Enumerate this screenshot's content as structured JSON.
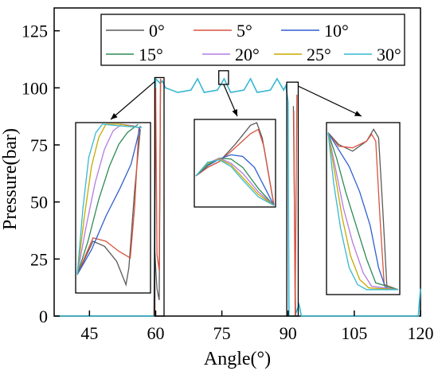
{
  "chart_data": {
    "type": "line",
    "title": "",
    "xlabel": "Angle(°)",
    "ylabel": "Pressure(bar)",
    "xlim": [
      37,
      120
    ],
    "ylim": [
      0,
      135
    ],
    "xticks": [
      45,
      60,
      75,
      90,
      105,
      120
    ],
    "yticks": [
      0,
      25,
      50,
      75,
      100,
      125
    ],
    "grid": false,
    "legend_position": "top-center",
    "series": [
      {
        "name": "0°",
        "color": "#5a5a5a"
      },
      {
        "name": "5°",
        "color": "#d9533f"
      },
      {
        "name": "10°",
        "color": "#2f5fd0"
      },
      {
        "name": "15°",
        "color": "#2e8b57"
      },
      {
        "name": "20°",
        "color": "#b37be0"
      },
      {
        "name": "25°",
        "color": "#c8a800"
      },
      {
        "name": "30°",
        "color": "#35b8d0"
      }
    ],
    "main_curve": {
      "x": [
        37,
        59.6,
        59.8,
        60.0,
        61.0,
        61.5,
        62.2,
        65,
        68,
        69.5,
        71,
        74,
        75.5,
        77,
        80,
        81.5,
        83,
        86,
        87.5,
        89,
        89.5,
        90.0,
        90.2,
        91.5,
        92.5,
        93.0,
        119.5,
        120
      ],
      "y": [
        0,
        0,
        60,
        104,
        102,
        103,
        100,
        98,
        99,
        104,
        98,
        99,
        104,
        98,
        99,
        104,
        98,
        99,
        104,
        99,
        101,
        94,
        0,
        0,
        5,
        0,
        0,
        12
      ]
    },
    "peaks": [
      {
        "name": "0°",
        "x": [
          59.6,
          59.8,
          60.3,
          60.8,
          61.1
        ],
        "y": [
          0,
          28,
          12,
          7,
          104
        ]
      },
      {
        "name": "5°",
        "x": [
          59.7,
          60.0,
          60.3,
          60.8,
          61.1
        ],
        "y": [
          0,
          100,
          27,
          20,
          104
        ]
      },
      {
        "name": "0°",
        "x": [
          91.2,
          91.7,
          92.3
        ],
        "y": [
          92,
          0,
          0
        ]
      },
      {
        "name": "5°",
        "x": [
          91.3,
          91.6,
          92.0
        ],
        "y": [
          90,
          0,
          97
        ]
      }
    ],
    "zoom_regions": [
      {
        "x_range": [
          59.8,
          61.9
        ],
        "y_range": [
          0,
          104.5
        ]
      },
      {
        "x_range": [
          74.3,
          76.5
        ],
        "y_range": [
          101.5,
          107.5
        ]
      },
      {
        "x_range": [
          89.7,
          92.3
        ],
        "y_range": [
          0,
          102.5
        ]
      }
    ],
    "insets": [
      {
        "region": "left",
        "series": [
          {
            "name": "0°",
            "points": [
              [
                0,
                0.1
              ],
              [
                0.22,
                0.3
              ],
              [
                0.38,
                0.27
              ],
              [
                0.55,
                0.18
              ],
              [
                0.68,
                0.04
              ],
              [
                0.72,
                0.14
              ],
              [
                0.8,
                0.6
              ],
              [
                0.88,
                0.97
              ]
            ]
          },
          {
            "name": "5°",
            "points": [
              [
                0,
                0.1
              ],
              [
                0.22,
                0.32
              ],
              [
                0.4,
                0.3
              ],
              [
                0.58,
                0.24
              ],
              [
                0.74,
                0.2
              ],
              [
                0.8,
                0.5
              ],
              [
                0.86,
                0.98
              ]
            ]
          },
          {
            "name": "10°",
            "points": [
              [
                0,
                0.1
              ],
              [
                0.2,
                0.25
              ],
              [
                0.4,
                0.45
              ],
              [
                0.6,
                0.62
              ],
              [
                0.75,
                0.76
              ],
              [
                0.82,
                0.88
              ],
              [
                0.88,
                0.99
              ]
            ]
          },
          {
            "name": "15°",
            "points": [
              [
                0,
                0.1
              ],
              [
                0.15,
                0.3
              ],
              [
                0.3,
                0.55
              ],
              [
                0.45,
                0.75
              ],
              [
                0.58,
                0.88
              ],
              [
                0.7,
                0.95
              ],
              [
                0.85,
                1.0
              ]
            ]
          },
          {
            "name": "20°",
            "points": [
              [
                0,
                0.1
              ],
              [
                0.12,
                0.38
              ],
              [
                0.25,
                0.65
              ],
              [
                0.38,
                0.85
              ],
              [
                0.5,
                0.96
              ],
              [
                0.62,
                1.0
              ],
              [
                0.8,
                0.99
              ]
            ]
          },
          {
            "name": "25°",
            "points": [
              [
                0,
                0.1
              ],
              [
                0.1,
                0.45
              ],
              [
                0.2,
                0.75
              ],
              [
                0.3,
                0.92
              ],
              [
                0.4,
                1.0
              ],
              [
                0.6,
                1.0
              ],
              [
                0.85,
                0.98
              ]
            ]
          },
          {
            "name": "30°",
            "points": [
              [
                0,
                0.1
              ],
              [
                0.08,
                0.5
              ],
              [
                0.16,
                0.8
              ],
              [
                0.26,
                0.95
              ],
              [
                0.35,
                1.0
              ],
              [
                0.6,
                0.99
              ],
              [
                0.9,
                0.98
              ]
            ]
          }
        ]
      },
      {
        "region": "middle",
        "series": [
          {
            "name": "0°",
            "points": [
              [
                0,
                0.35
              ],
              [
                0.15,
                0.45
              ],
              [
                0.3,
                0.52
              ],
              [
                0.5,
                0.72
              ],
              [
                0.7,
                0.95
              ],
              [
                0.78,
                0.98
              ],
              [
                0.85,
                0.8
              ],
              [
                1,
                0.0
              ]
            ]
          },
          {
            "name": "5°",
            "points": [
              [
                0,
                0.35
              ],
              [
                0.15,
                0.45
              ],
              [
                0.3,
                0.52
              ],
              [
                0.5,
                0.68
              ],
              [
                0.7,
                0.85
              ],
              [
                0.8,
                0.9
              ],
              [
                0.87,
                0.7
              ],
              [
                1,
                0.0
              ]
            ]
          },
          {
            "name": "10°",
            "points": [
              [
                0,
                0.35
              ],
              [
                0.15,
                0.47
              ],
              [
                0.3,
                0.55
              ],
              [
                0.45,
                0.6
              ],
              [
                0.6,
                0.58
              ],
              [
                0.75,
                0.45
              ],
              [
                1,
                0.0
              ]
            ]
          },
          {
            "name": "15°",
            "points": [
              [
                0,
                0.35
              ],
              [
                0.15,
                0.48
              ],
              [
                0.3,
                0.56
              ],
              [
                0.45,
                0.55
              ],
              [
                0.6,
                0.45
              ],
              [
                0.8,
                0.2
              ],
              [
                1,
                0.0
              ]
            ]
          },
          {
            "name": "20°",
            "points": [
              [
                0,
                0.35
              ],
              [
                0.15,
                0.5
              ],
              [
                0.3,
                0.56
              ],
              [
                0.45,
                0.5
              ],
              [
                0.6,
                0.38
              ],
              [
                0.8,
                0.16
              ],
              [
                1,
                0.0
              ]
            ]
          },
          {
            "name": "25°",
            "points": [
              [
                0,
                0.35
              ],
              [
                0.15,
                0.5
              ],
              [
                0.3,
                0.55
              ],
              [
                0.45,
                0.48
              ],
              [
                0.6,
                0.33
              ],
              [
                0.8,
                0.13
              ],
              [
                1,
                0.0
              ]
            ]
          },
          {
            "name": "30°",
            "points": [
              [
                0,
                0.35
              ],
              [
                0.15,
                0.51
              ],
              [
                0.3,
                0.54
              ],
              [
                0.45,
                0.46
              ],
              [
                0.6,
                0.3
              ],
              [
                0.8,
                0.1
              ],
              [
                1,
                0.0
              ]
            ]
          }
        ]
      },
      {
        "region": "right",
        "series": [
          {
            "name": "0°",
            "points": [
              [
                0,
                0.95
              ],
              [
                0.15,
                0.88
              ],
              [
                0.35,
                0.84
              ],
              [
                0.55,
                0.9
              ],
              [
                0.65,
                0.97
              ],
              [
                0.72,
                0.92
              ],
              [
                0.78,
                0.5
              ],
              [
                0.84,
                0.03
              ],
              [
                1,
                0.02
              ]
            ]
          },
          {
            "name": "5°",
            "points": [
              [
                0,
                0.95
              ],
              [
                0.15,
                0.87
              ],
              [
                0.35,
                0.86
              ],
              [
                0.55,
                0.9
              ],
              [
                0.62,
                0.94
              ],
              [
                0.68,
                0.9
              ],
              [
                0.74,
                0.45
              ],
              [
                0.8,
                0.05
              ],
              [
                1,
                0.02
              ]
            ]
          },
          {
            "name": "10°",
            "points": [
              [
                0,
                0.95
              ],
              [
                0.15,
                0.85
              ],
              [
                0.3,
                0.75
              ],
              [
                0.45,
                0.6
              ],
              [
                0.6,
                0.4
              ],
              [
                0.72,
                0.15
              ],
              [
                0.82,
                0.03
              ],
              [
                1,
                0.02
              ]
            ]
          },
          {
            "name": "15°",
            "points": [
              [
                0,
                0.95
              ],
              [
                0.12,
                0.8
              ],
              [
                0.25,
                0.6
              ],
              [
                0.4,
                0.4
              ],
              [
                0.55,
                0.2
              ],
              [
                0.68,
                0.06
              ],
              [
                1,
                0.02
              ]
            ]
          },
          {
            "name": "20°",
            "points": [
              [
                0,
                0.95
              ],
              [
                0.1,
                0.75
              ],
              [
                0.22,
                0.5
              ],
              [
                0.35,
                0.3
              ],
              [
                0.5,
                0.12
              ],
              [
                0.62,
                0.04
              ],
              [
                1,
                0.02
              ]
            ]
          },
          {
            "name": "25°",
            "points": [
              [
                0,
                0.95
              ],
              [
                0.1,
                0.7
              ],
              [
                0.2,
                0.45
              ],
              [
                0.32,
                0.22
              ],
              [
                0.45,
                0.08
              ],
              [
                0.58,
                0.03
              ],
              [
                1,
                0.02
              ]
            ]
          },
          {
            "name": "30°",
            "points": [
              [
                0,
                0.95
              ],
              [
                0.08,
                0.65
              ],
              [
                0.18,
                0.38
              ],
              [
                0.3,
                0.15
              ],
              [
                0.42,
                0.05
              ],
              [
                0.55,
                0.02
              ],
              [
                1,
                0.02
              ]
            ]
          }
        ]
      }
    ]
  }
}
